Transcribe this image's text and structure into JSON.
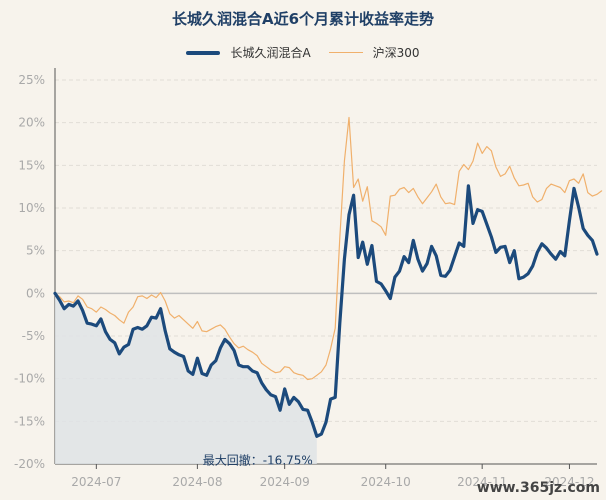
{
  "title": "长城久润混合A近6个月累计收益率走势",
  "legend": {
    "fund_label": "长城久润混合A",
    "index_label": "沪深300"
  },
  "annotation": "最大回撤：-16.75%",
  "site_watermark": "www.365jz.com",
  "colors": {
    "fund": "#1c4a7c",
    "index": "#f0b06c",
    "drawdown_fill": "#dfe3e6",
    "grid": "#e2ded6",
    "zero_line": "#bfbfbf",
    "tick_text": "#a9a9a9",
    "annotation_text": "#1f3f66"
  },
  "chart_data": {
    "type": "line",
    "title": "长城久润混合A近6个月累计收益率走势",
    "ylim": [
      -20,
      25
    ],
    "yticks": [
      "25%",
      "20%",
      "15%",
      "10%",
      "5%",
      "0%",
      "-5%",
      "-10%",
      "-15%",
      "-20%"
    ],
    "ytick_values": [
      25,
      20,
      15,
      10,
      5,
      0,
      -5,
      -10,
      -15,
      -20
    ],
    "xtick_labels": [
      "2024-07",
      "2024-08",
      "2024-09",
      "2024-10",
      "2024-11",
      "2024-12"
    ],
    "xtick_index": [
      9,
      31,
      50,
      72,
      93,
      112
    ],
    "grid": true,
    "legend_position": "top-center",
    "max_drawdown": -16.75,
    "max_drawdown_end_index": 57,
    "series": [
      {
        "name": "长城久润混合A",
        "values": [
          0.0,
          -0.8,
          -1.8,
          -1.3,
          -1.5,
          -0.9,
          -2.0,
          -3.5,
          -3.6,
          -3.8,
          -3.0,
          -4.5,
          -5.4,
          -5.8,
          -7.1,
          -6.3,
          -6.0,
          -4.2,
          -4.0,
          -4.2,
          -3.8,
          -2.8,
          -2.9,
          -1.8,
          -4.4,
          -6.5,
          -6.9,
          -7.2,
          -7.4,
          -9.1,
          -9.5,
          -7.6,
          -9.4,
          -9.6,
          -8.4,
          -7.9,
          -6.4,
          -5.4,
          -5.9,
          -6.7,
          -8.4,
          -8.6,
          -8.6,
          -9.1,
          -9.3,
          -10.5,
          -11.3,
          -11.9,
          -12.1,
          -13.7,
          -11.2,
          -13.0,
          -12.2,
          -12.7,
          -13.6,
          -13.7,
          -15.1,
          -16.75,
          -16.5,
          -15.1,
          -12.4,
          -12.2,
          -3.5,
          4.0,
          9.2,
          11.5,
          4.2,
          6.0,
          3.4,
          5.6,
          1.4,
          1.1,
          0.3,
          -0.6,
          1.9,
          2.6,
          4.3,
          3.6,
          6.2,
          4.0,
          2.6,
          3.5,
          5.5,
          4.4,
          2.1,
          2.0,
          2.7,
          4.3,
          5.9,
          5.5,
          12.6,
          8.2,
          9.8,
          9.6,
          8.1,
          6.6,
          4.8,
          5.4,
          5.5,
          3.6,
          5.0,
          1.7,
          1.9,
          2.3,
          3.2,
          4.8,
          5.8,
          5.3,
          4.6,
          4.0,
          4.9,
          4.4,
          8.5,
          12.3,
          10.1,
          7.6,
          6.8,
          6.2,
          4.6
        ]
      },
      {
        "name": "沪深300",
        "values": [
          0.0,
          -0.4,
          -1.0,
          -0.9,
          -1.1,
          -0.3,
          -0.7,
          -1.6,
          -1.8,
          -2.2,
          -1.6,
          -1.9,
          -2.3,
          -2.6,
          -3.1,
          -3.5,
          -2.2,
          -1.6,
          -0.4,
          -0.3,
          -0.6,
          -0.2,
          -0.5,
          0.1,
          -0.9,
          -2.4,
          -2.9,
          -2.6,
          -3.1,
          -3.6,
          -4.1,
          -3.3,
          -4.4,
          -4.5,
          -4.2,
          -3.9,
          -3.7,
          -4.2,
          -5.1,
          -5.9,
          -6.4,
          -6.2,
          -6.6,
          -6.9,
          -7.3,
          -8.2,
          -8.6,
          -9.0,
          -9.3,
          -9.2,
          -8.6,
          -8.7,
          -9.3,
          -9.5,
          -9.6,
          -10.1,
          -10.0,
          -9.6,
          -9.2,
          -8.4,
          -6.5,
          -4.1,
          6.5,
          15.5,
          20.6,
          12.4,
          13.4,
          10.8,
          12.5,
          8.5,
          8.2,
          7.8,
          6.8,
          11.4,
          11.5,
          12.2,
          12.4,
          11.8,
          12.3,
          11.3,
          10.5,
          11.2,
          11.9,
          12.8,
          11.3,
          10.5,
          10.6,
          10.4,
          14.3,
          15.1,
          14.5,
          15.5,
          17.6,
          16.4,
          17.2,
          16.7,
          14.8,
          13.7,
          14.0,
          14.9,
          13.5,
          12.6,
          12.7,
          12.9,
          11.3,
          10.7,
          11.0,
          12.3,
          12.8,
          12.6,
          12.4,
          11.8,
          13.2,
          13.4,
          12.9,
          14.0,
          11.8,
          11.4,
          11.6,
          12.0
        ]
      }
    ]
  }
}
